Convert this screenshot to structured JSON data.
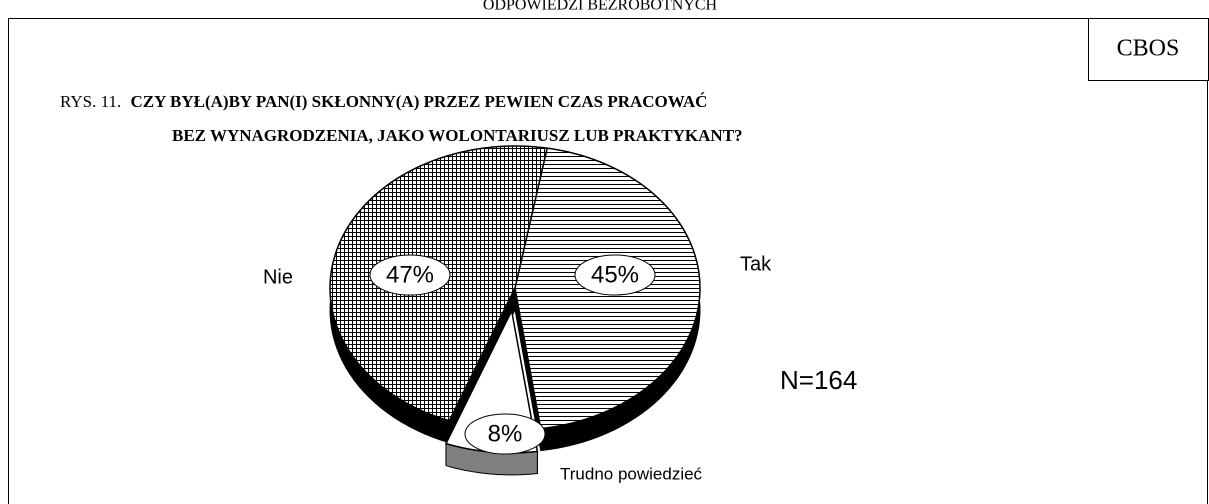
{
  "header": "ODPOWIEDZI BEZROBOTNYCH",
  "chart_data": {
    "type": "pie",
    "source": "CBOS",
    "figure_label": "RYS. 11.",
    "title": [
      "CZY BYŁ(A)BY PAN(I) SKŁONNY(A) PRZEZ PEWIEN CZAS PRACOWAĆ",
      "BEZ  WYNAGRODZENIA, JAKO WOLONTARIUSZ LUB PRAKTYKANT?"
    ],
    "categories": [
      "Tak",
      "Trudno powiedzieć",
      "Nie"
    ],
    "values": [
      45,
      8,
      47
    ],
    "value_labels": [
      "45%",
      "8%",
      "47%"
    ],
    "exploded": [
      false,
      true,
      false
    ],
    "note": "N=164"
  }
}
